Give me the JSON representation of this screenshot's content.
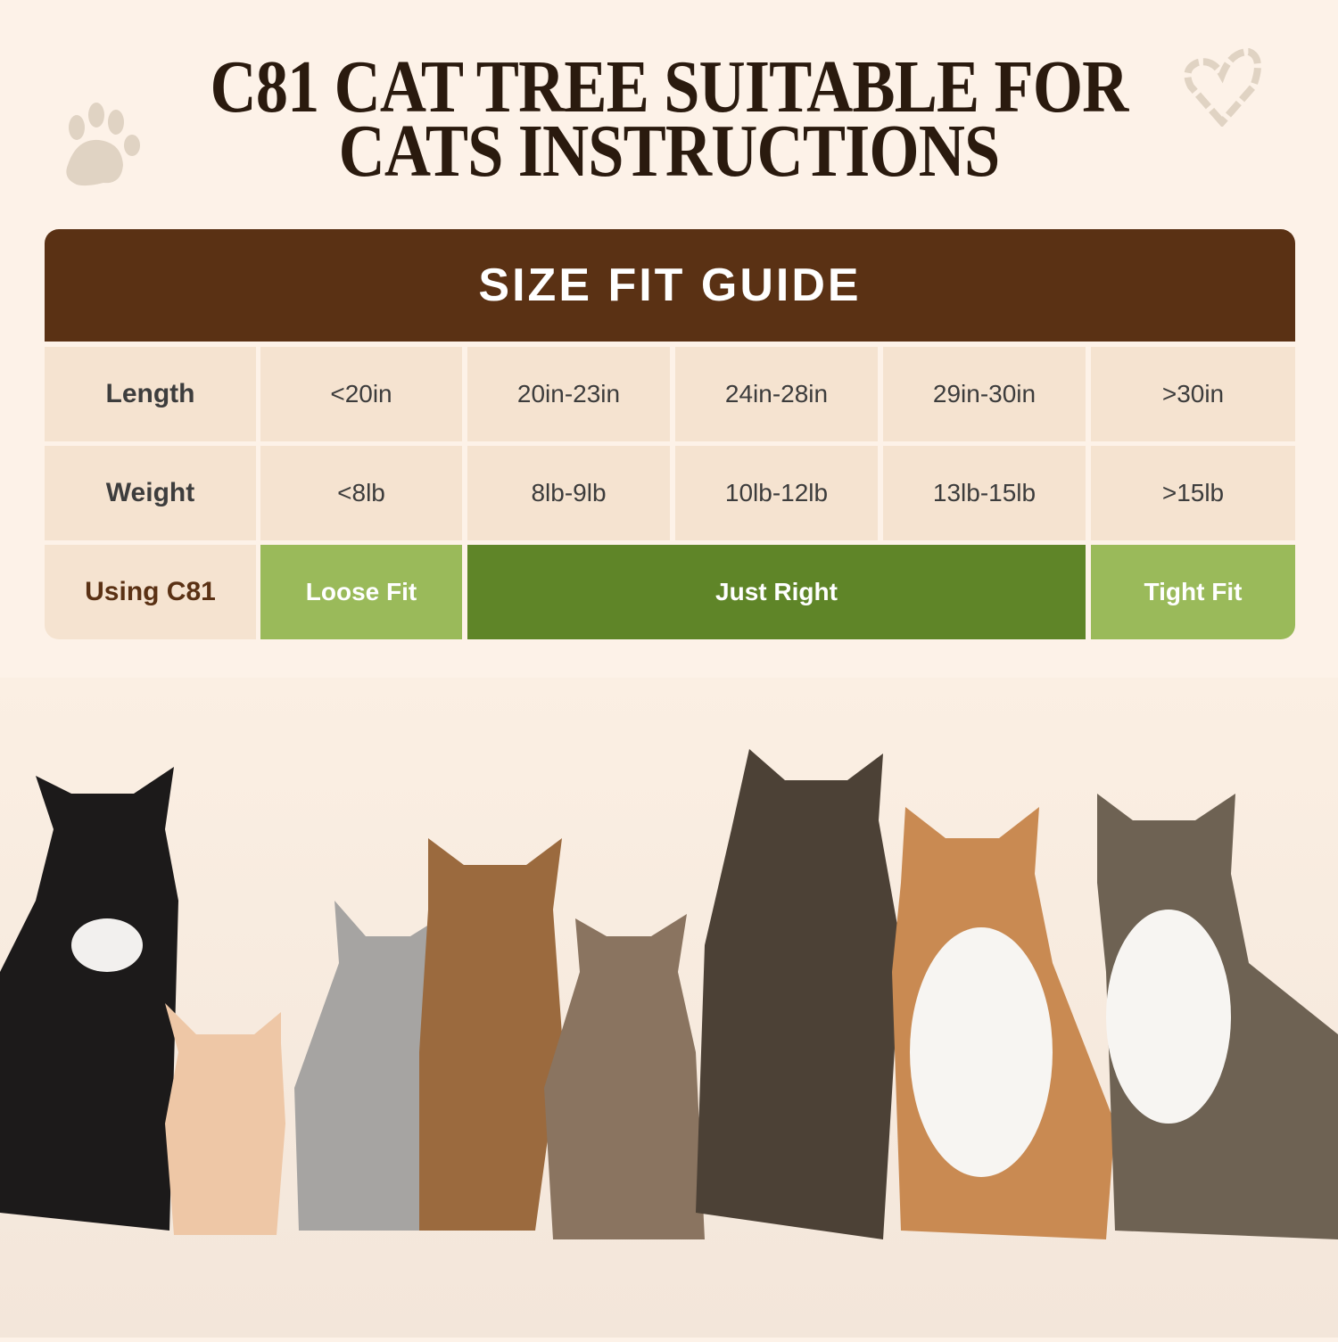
{
  "title": {
    "line1": "C81 CAT TREE SUITABLE FOR",
    "line2": "CATS INSTRUCTIONS"
  },
  "decorations": {
    "left_icon": "paw-print-icon",
    "right_icon": "heart-icon"
  },
  "guide": {
    "header": "SIZE FIT GUIDE",
    "rows": [
      {
        "label": "Length",
        "values": [
          "<20in",
          "20in-23in",
          "24in-28in",
          "29in-30in",
          ">30in"
        ]
      },
      {
        "label": "Weight",
        "values": [
          "<8lb",
          "8lb-9lb",
          "10lb-12lb",
          "13lb-15lb",
          ">15lb"
        ]
      }
    ],
    "fit_row": {
      "label": "Using C81",
      "loose": "Loose Fit",
      "right": "Just Right",
      "tight": "Tight Fit"
    }
  },
  "colors": {
    "header_brown": "#5a3114",
    "cell": "#f5e3d0",
    "light_green": "#9aba5a",
    "dark_green": "#5f8528",
    "background": "#fdf2e8"
  }
}
